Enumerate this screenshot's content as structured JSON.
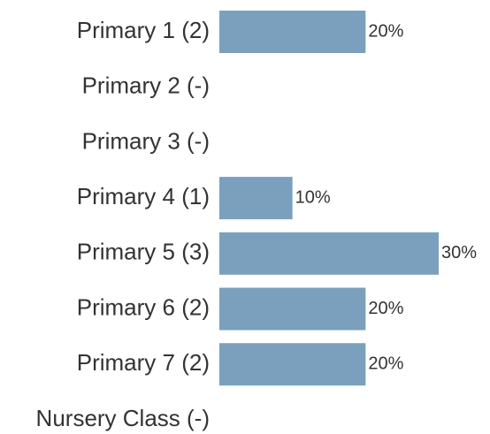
{
  "chart_data": {
    "type": "bar",
    "orientation": "horizontal",
    "categories": [
      "Primary 1 (2)",
      "Primary 2 (-)",
      "Primary 3 (-)",
      "Primary 4 (1)",
      "Primary 5 (3)",
      "Primary 6 (2)",
      "Primary 7 (2)",
      "Nursery Class (-)"
    ],
    "values": [
      20,
      null,
      null,
      10,
      30,
      20,
      20,
      null
    ],
    "value_labels": [
      "20%",
      null,
      null,
      "10%",
      "30%",
      "20%",
      "20%",
      null
    ],
    "color": "#7aa0be",
    "xlim": [
      0,
      30
    ]
  }
}
